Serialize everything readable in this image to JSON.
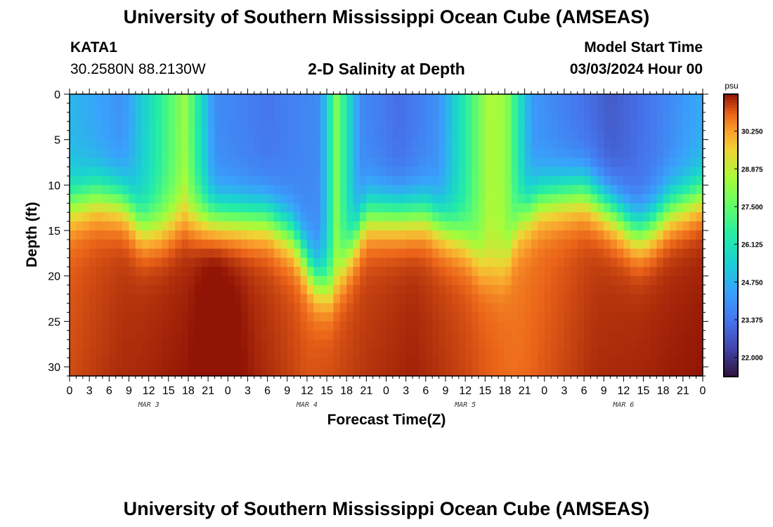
{
  "header": {
    "title": "University of Southern Mississippi Ocean Cube (AMSEAS)",
    "station_id": "KATA1",
    "station_coords": "30.2580N  88.2130W",
    "plot_title": "2-D Salinity at Depth",
    "model_start_label": "Model Start Time",
    "model_start_value": "03/03/2024 Hour 00"
  },
  "footer": {
    "title": "University of Southern Mississippi Ocean Cube (AMSEAS)"
  },
  "chart_data": {
    "type": "heatmap",
    "title": "2-D Salinity at Depth",
    "xlabel": "Forecast Time(Z)",
    "ylabel": "Depth (ft)",
    "x_range_hours": [
      0,
      96
    ],
    "x_tick_step_hours": 3,
    "x_tick_labels": [
      "0",
      "3",
      "6",
      "9",
      "12",
      "15",
      "18",
      "21",
      "0",
      "3",
      "6",
      "9",
      "12",
      "15",
      "18",
      "21",
      "0",
      "3",
      "6",
      "9",
      "12",
      "15",
      "18",
      "21",
      "0",
      "3",
      "6",
      "9",
      "12",
      "15",
      "18",
      "21",
      "0"
    ],
    "day_labels": [
      {
        "label": "MAR 3",
        "hour": 12
      },
      {
        "label": "MAR 4",
        "hour": 36
      },
      {
        "label": "MAR 5",
        "hour": 60
      },
      {
        "label": "MAR 6",
        "hour": 84
      }
    ],
    "y_range": [
      0,
      31
    ],
    "y_ticks": [
      "0",
      "5",
      "10",
      "15",
      "20",
      "25",
      "30"
    ],
    "y_tick_values": [
      0,
      5,
      10,
      15,
      20,
      25,
      30
    ],
    "colorbar": {
      "unit": "psu",
      "range": [
        21.3,
        31.6
      ],
      "tick_labels": [
        "30.250",
        "28.875",
        "27.500",
        "26.125",
        "24.750",
        "23.375",
        "22.000"
      ],
      "tick_values": [
        30.25,
        28.875,
        27.5,
        26.125,
        24.75,
        23.375,
        22.0
      ]
    },
    "halocline_depth_ft": {
      "hours": [
        0,
        4,
        8,
        11,
        14,
        17,
        19,
        24,
        30,
        34,
        37,
        40,
        42,
        45,
        48,
        54,
        60,
        63,
        66,
        68,
        71,
        74,
        78,
        82,
        86,
        88,
        91,
        96
      ],
      "depths": [
        12,
        11,
        11.5,
        14.5,
        14.5,
        13.5,
        13.5,
        13.5,
        13.5,
        15.5,
        20,
        21.5,
        18,
        13,
        13,
        13,
        16,
        19,
        19,
        14,
        11.5,
        11,
        10.5,
        12.5,
        15,
        14.5,
        12.5,
        11
      ]
    },
    "surface_salinity_psu": {
      "hours": [
        0,
        8,
        17.5,
        22,
        30,
        38,
        40.5,
        44,
        50,
        56,
        63.5,
        66,
        70,
        78,
        82,
        88,
        92,
        96
      ],
      "values": [
        24.9,
        24.0,
        28.3,
        23.9,
        23.4,
        23.9,
        27.9,
        23.9,
        23.2,
        24.0,
        28.6,
        28.4,
        24.2,
        23.3,
        22.8,
        23.4,
        24.0,
        24.6
      ]
    },
    "bottom_salinity_psu": {
      "hours": [
        0,
        8,
        18,
        22,
        28,
        36,
        44,
        52,
        60,
        68,
        72,
        80,
        88,
        96
      ],
      "values": [
        30.9,
        31.2,
        31.4,
        31.8,
        31.3,
        30.9,
        31.1,
        31.3,
        31.0,
        30.6,
        30.8,
        31.2,
        31.3,
        31.4
      ]
    }
  }
}
